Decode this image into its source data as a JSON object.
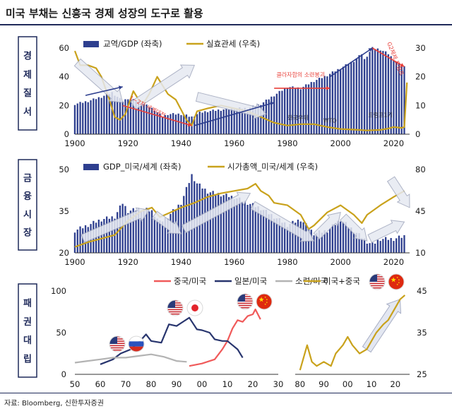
{
  "title": "미국 부채는 신흥국 경제 성장의 도구로 활용",
  "source": "자료: Bloomberg, 신한투자증권",
  "colors": {
    "bar": "#2e3f8f",
    "gold": "#c9a21c",
    "red": "#f05a5a",
    "navy": "#28356e",
    "gray": "#b3b3b3",
    "panel_label_border": "#1f2a5a",
    "arrow_fill": "#e6e9f1",
    "arrow_stroke": "#a0a7bd",
    "red_arrow": "#e8403a",
    "blue_arrow": "#2e3f8f"
  },
  "chart_data": [
    {
      "id": "economic-order",
      "type": "bar+line",
      "panel_label": "경제질서",
      "x_ticks": [
        "1900",
        "1920",
        "1940",
        "1960",
        "1980",
        "2000",
        "2020"
      ],
      "xlim": [
        1900,
        2026
      ],
      "ylim_left": [
        0,
        60
      ],
      "yticks_left": [
        "0",
        "20",
        "40",
        "60"
      ],
      "ylim_right": [
        0,
        30
      ],
      "yticks_right": [
        "0",
        "10",
        "20",
        "30"
      ],
      "bar_series": {
        "name": "교역/GDP (좌축)",
        "points": [
          [
            1900,
            21
          ],
          [
            1905,
            23
          ],
          [
            1910,
            26
          ],
          [
            1914,
            29
          ],
          [
            1918,
            23
          ],
          [
            1920,
            25
          ],
          [
            1925,
            22
          ],
          [
            1930,
            17
          ],
          [
            1933,
            12
          ],
          [
            1935,
            14
          ],
          [
            1940,
            14
          ],
          [
            1944,
            12
          ],
          [
            1947,
            15
          ],
          [
            1950,
            16
          ],
          [
            1955,
            17
          ],
          [
            1960,
            18
          ],
          [
            1965,
            18
          ],
          [
            1970,
            21
          ],
          [
            1975,
            27
          ],
          [
            1980,
            33
          ],
          [
            1985,
            32
          ],
          [
            1990,
            37
          ],
          [
            1995,
            41
          ],
          [
            2000,
            46
          ],
          [
            2005,
            51
          ],
          [
            2008,
            56
          ],
          [
            2009,
            52
          ],
          [
            2012,
            60
          ],
          [
            2015,
            59
          ],
          [
            2018,
            56
          ],
          [
            2020,
            52
          ],
          [
            2022,
            49
          ],
          [
            2024,
            47
          ]
        ]
      },
      "line_series": {
        "name": "실효관세 (우축)",
        "points": [
          [
            1900,
            29
          ],
          [
            1902,
            24
          ],
          [
            1905,
            24
          ],
          [
            1908,
            23
          ],
          [
            1910,
            20
          ],
          [
            1913,
            12
          ],
          [
            1915,
            6
          ],
          [
            1917,
            5
          ],
          [
            1919,
            7
          ],
          [
            1922,
            15
          ],
          [
            1924,
            12
          ],
          [
            1926,
            11
          ],
          [
            1928,
            14
          ],
          [
            1931,
            20
          ],
          [
            1933,
            17
          ],
          [
            1935,
            14
          ],
          [
            1938,
            12
          ],
          [
            1942,
            5
          ],
          [
            1944,
            3
          ],
          [
            1946,
            8
          ],
          [
            1950,
            9
          ],
          [
            1955,
            10
          ],
          [
            1960,
            9
          ],
          [
            1965,
            8
          ],
          [
            1970,
            6
          ],
          [
            1975,
            4
          ],
          [
            1980,
            3
          ],
          [
            1985,
            3.5
          ],
          [
            1990,
            3.5
          ],
          [
            1995,
            2.5
          ],
          [
            2000,
            1.8
          ],
          [
            2005,
            1.6
          ],
          [
            2010,
            1.3
          ],
          [
            2015,
            1.5
          ],
          [
            2018,
            2.0
          ],
          [
            2020,
            2.5
          ],
          [
            2023,
            2.2
          ],
          [
            2024,
            2.5
          ],
          [
            2025,
            18
          ]
        ]
      },
      "annotations": [
        "1~2차 세계대전",
        "클라자합의 소련붕괴",
        "한국우위",
        "WTO",
        "트럼프1기",
        "G2체제 트럼프"
      ]
    },
    {
      "id": "financial-market",
      "type": "bar+line",
      "panel_label": "금융시장",
      "x_ticks": [
        "1900",
        "1920",
        "1940",
        "1960",
        "1980",
        "2000",
        "2020"
      ],
      "xlim": [
        1900,
        2026
      ],
      "ylim_left": [
        20,
        50
      ],
      "yticks_left": [
        "20",
        "35",
        "50"
      ],
      "ylim_right": [
        10,
        80
      ],
      "yticks_right": [
        "10",
        "45",
        "80"
      ],
      "bar_series": {
        "name": "GDP_미국/세계 (좌축)",
        "points": [
          [
            1900,
            28
          ],
          [
            1905,
            30
          ],
          [
            1910,
            32
          ],
          [
            1915,
            33
          ],
          [
            1918,
            38
          ],
          [
            1920,
            35
          ],
          [
            1925,
            36
          ],
          [
            1929,
            35
          ],
          [
            1932,
            31
          ],
          [
            1935,
            33
          ],
          [
            1940,
            38
          ],
          [
            1944,
            48
          ],
          [
            1946,
            45
          ],
          [
            1950,
            42
          ],
          [
            1955,
            41
          ],
          [
            1960,
            40
          ],
          [
            1965,
            38
          ],
          [
            1970,
            36
          ],
          [
            1975,
            33
          ],
          [
            1980,
            30
          ],
          [
            1985,
            32
          ],
          [
            1990,
            27
          ],
          [
            1995,
            28
          ],
          [
            2000,
            32
          ],
          [
            2005,
            28
          ],
          [
            2010,
            24
          ],
          [
            2012,
            23
          ],
          [
            2015,
            25
          ],
          [
            2020,
            25
          ],
          [
            2024,
            26
          ]
        ]
      },
      "line_series": {
        "name": "시가총액_미국/세계 (우축)",
        "points": [
          [
            1900,
            15
          ],
          [
            1905,
            19
          ],
          [
            1910,
            22
          ],
          [
            1915,
            25
          ],
          [
            1920,
            37
          ],
          [
            1925,
            45
          ],
          [
            1929,
            48
          ],
          [
            1932,
            40
          ],
          [
            1935,
            43
          ],
          [
            1940,
            48
          ],
          [
            1945,
            52
          ],
          [
            1950,
            57
          ],
          [
            1955,
            60
          ],
          [
            1960,
            62
          ],
          [
            1965,
            64
          ],
          [
            1968,
            68
          ],
          [
            1970,
            62
          ],
          [
            1973,
            58
          ],
          [
            1975,
            52
          ],
          [
            1980,
            50
          ],
          [
            1985,
            42
          ],
          [
            1988,
            30
          ],
          [
            1990,
            33
          ],
          [
            1995,
            44
          ],
          [
            2000,
            50
          ],
          [
            2005,
            42
          ],
          [
            2008,
            35
          ],
          [
            2010,
            42
          ],
          [
            2015,
            50
          ],
          [
            2020,
            57
          ],
          [
            2024,
            62
          ]
        ]
      }
    },
    {
      "id": "hegemony-race",
      "type": "line",
      "panel_label": "패권대립",
      "x_ticks": [
        "50",
        "60",
        "70",
        "80",
        "90",
        "00",
        "10",
        "20",
        "30"
      ],
      "xlim": [
        1950,
        2030
      ],
      "ylim": [
        0,
        100
      ],
      "yticks": [
        "0",
        "50",
        "100"
      ],
      "series": [
        {
          "name": "중국/미국",
          "points": [
            [
              1995,
              10
            ],
            [
              2000,
              13
            ],
            [
              2005,
              18
            ],
            [
              2008,
              30
            ],
            [
              2010,
              40
            ],
            [
              2012,
              55
            ],
            [
              2014,
              65
            ],
            [
              2016,
              63
            ],
            [
              2018,
              70
            ],
            [
              2020,
              72
            ],
            [
              2021,
              78
            ],
            [
              2023,
              66
            ]
          ]
        },
        {
          "name": "일본/미국",
          "points": [
            [
              1960,
              12
            ],
            [
              1965,
              18
            ],
            [
              1968,
              25
            ],
            [
              1972,
              30
            ],
            [
              1975,
              38
            ],
            [
              1978,
              48
            ],
            [
              1980,
              40
            ],
            [
              1984,
              38
            ],
            [
              1987,
              60
            ],
            [
              1990,
              58
            ],
            [
              1993,
              64
            ],
            [
              1995,
              68
            ],
            [
              1998,
              54
            ],
            [
              2000,
              53
            ],
            [
              2003,
              50
            ],
            [
              2005,
              42
            ],
            [
              2008,
              40
            ],
            [
              2010,
              40
            ],
            [
              2012,
              35
            ],
            [
              2014,
              30
            ],
            [
              2016,
              20
            ]
          ]
        },
        {
          "name": "소련/미국",
          "points": [
            [
              1950,
              14
            ],
            [
              1955,
              16
            ],
            [
              1960,
              18
            ],
            [
              1965,
              20
            ],
            [
              1970,
              20
            ],
            [
              1975,
              22
            ],
            [
              1980,
              24
            ],
            [
              1985,
              21
            ],
            [
              1990,
              16
            ],
            [
              1994,
              15
            ]
          ]
        }
      ]
    },
    {
      "id": "us-plus-china",
      "type": "line",
      "x_ticks": [
        "80",
        "90",
        "00",
        "10",
        "20"
      ],
      "xlim": [
        1978,
        2026
      ],
      "ylim": [
        25,
        45
      ],
      "yticks": [
        "25",
        "35",
        "45"
      ],
      "series": [
        {
          "name": "미국+중국",
          "points": [
            [
              1980,
              26
            ],
            [
              1983,
              32
            ],
            [
              1985,
              28
            ],
            [
              1987,
              27
            ],
            [
              1990,
              28
            ],
            [
              1993,
              27
            ],
            [
              1995,
              30
            ],
            [
              1998,
              32
            ],
            [
              2000,
              34
            ],
            [
              2002,
              32
            ],
            [
              2005,
              30
            ],
            [
              2008,
              31
            ],
            [
              2010,
              33
            ],
            [
              2012,
              35
            ],
            [
              2015,
              37
            ],
            [
              2017,
              38
            ],
            [
              2020,
              41
            ],
            [
              2022,
              43
            ],
            [
              2024,
              44
            ]
          ]
        }
      ]
    }
  ],
  "flags": [
    "us-flag",
    "russia-flag",
    "japan-flag",
    "china-flag"
  ]
}
